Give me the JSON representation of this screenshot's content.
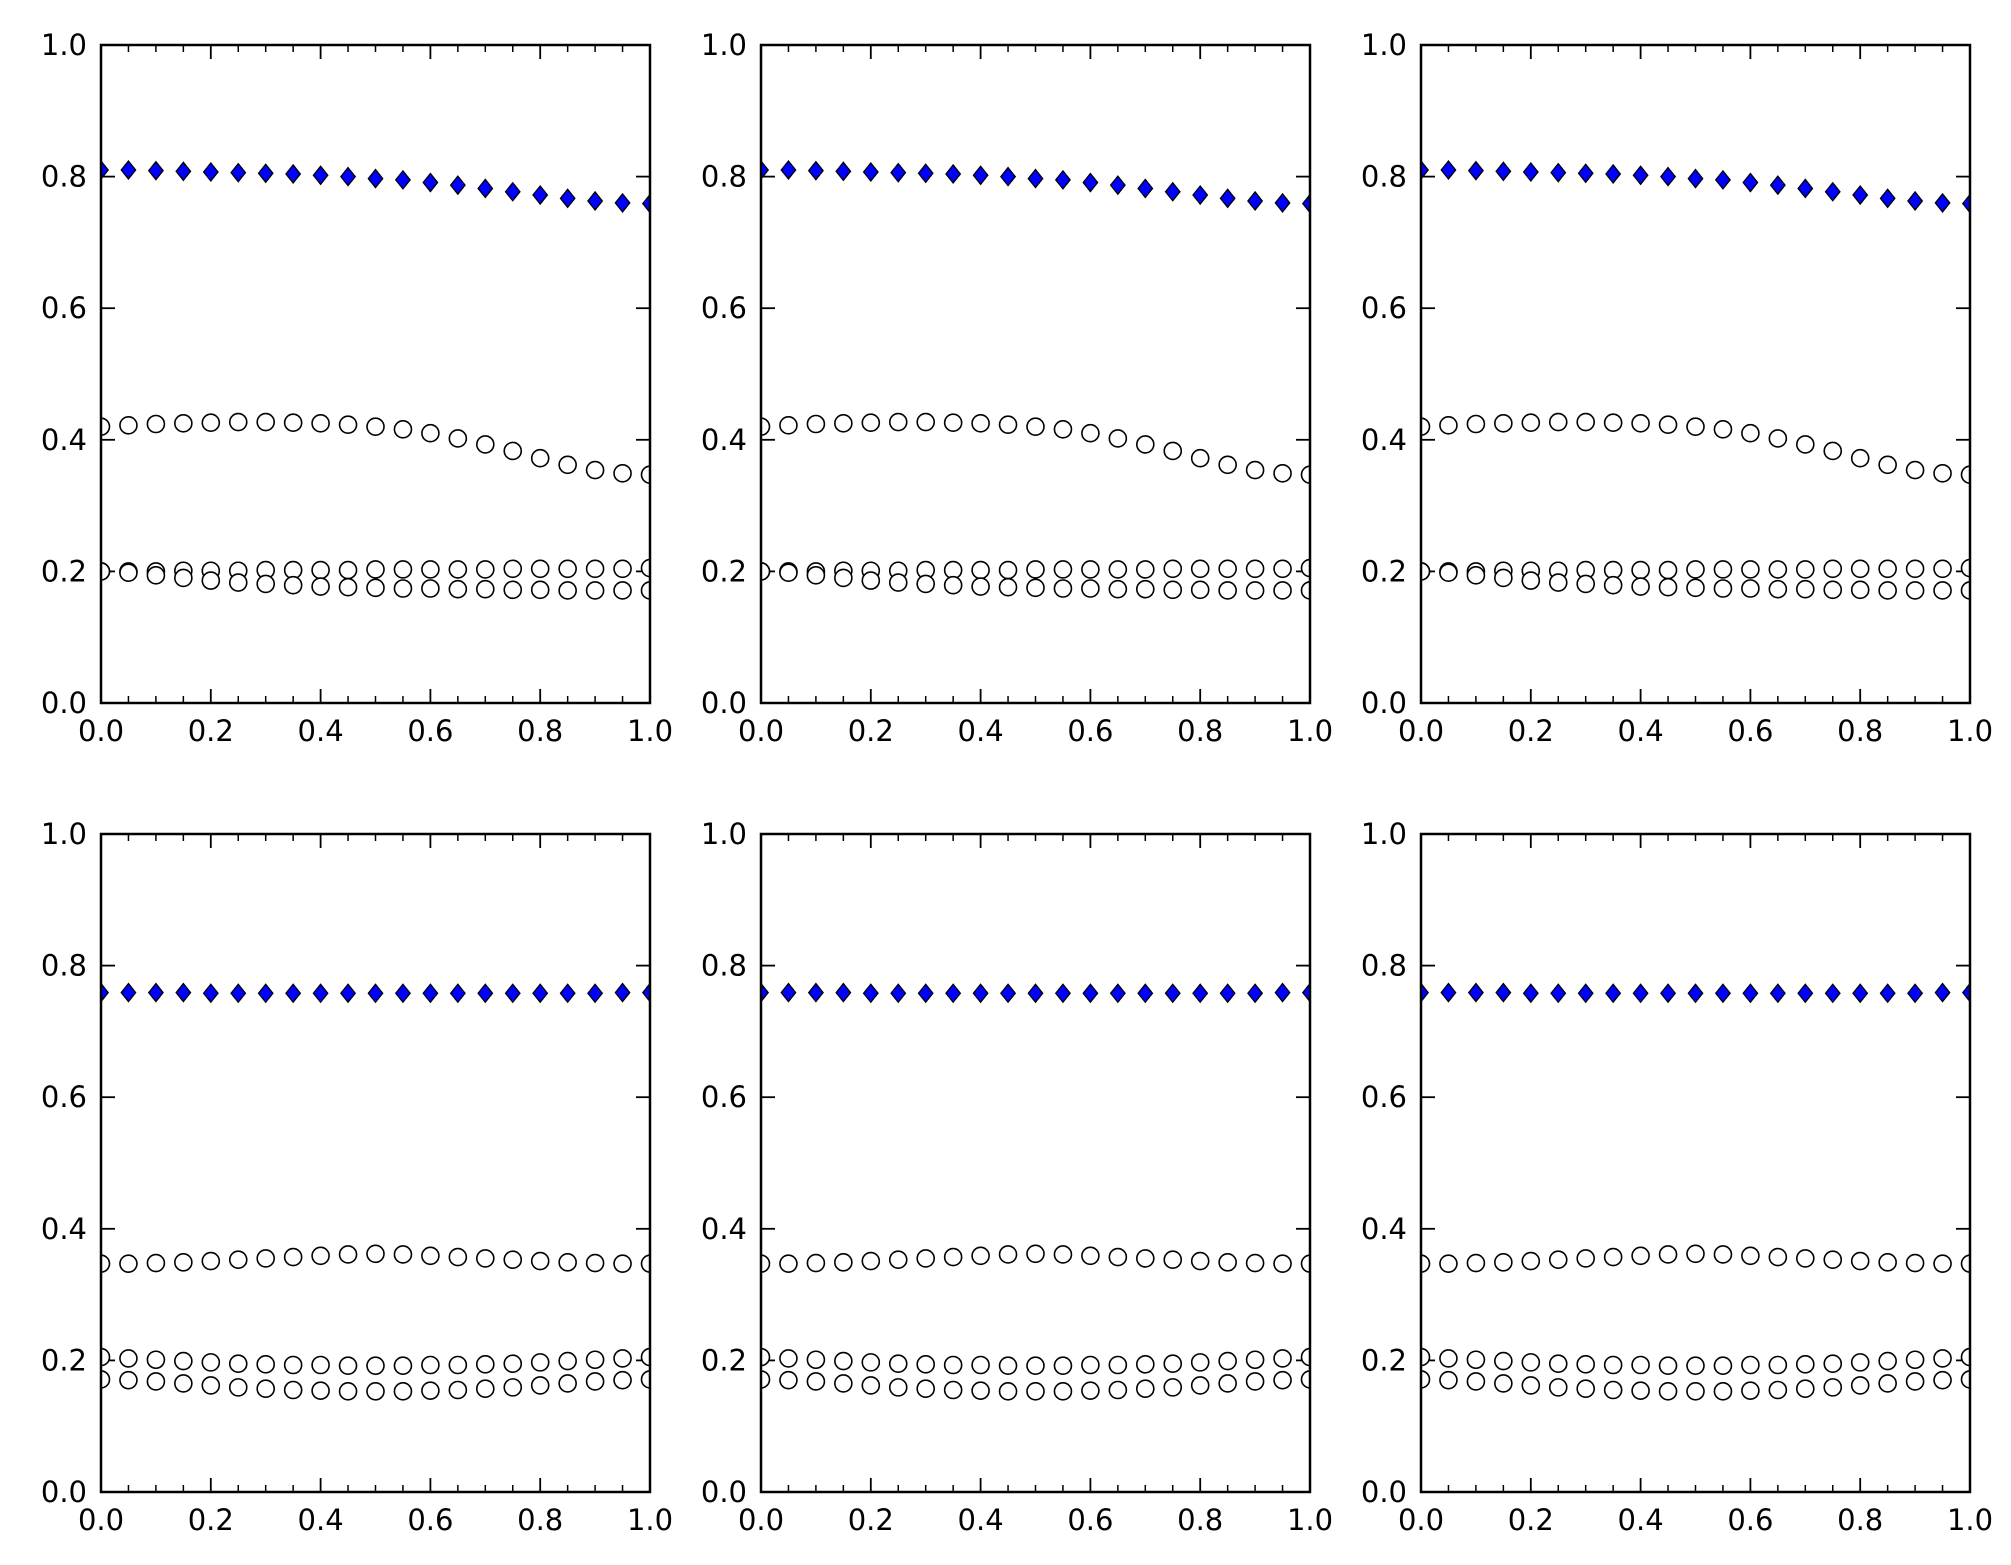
{
  "chart_data": [
    {
      "type": "scatter",
      "xlim": [
        0.0,
        1.0
      ],
      "ylim": [
        0.0,
        1.0
      ],
      "xticks": [
        "0.0",
        "0.2",
        "0.4",
        "0.6",
        "0.8",
        "1.0"
      ],
      "yticks": [
        "0.0",
        "0.2",
        "0.4",
        "0.6",
        "0.8",
        "1.0"
      ],
      "grid": false,
      "x": [
        0,
        0.05,
        0.1,
        0.15,
        0.2,
        0.25,
        0.3,
        0.35,
        0.4,
        0.45,
        0.5,
        0.55,
        0.6,
        0.65,
        0.7,
        0.75,
        0.8,
        0.85,
        0.9,
        0.95,
        1.0
      ],
      "series": [
        {
          "marker": "diamond",
          "color": "#0000ff",
          "values": [
            0.81,
            0.81,
            0.809,
            0.808,
            0.807,
            0.806,
            0.805,
            0.804,
            0.802,
            0.8,
            0.797,
            0.795,
            0.791,
            0.787,
            0.782,
            0.777,
            0.772,
            0.767,
            0.763,
            0.76,
            0.759
          ]
        },
        {
          "marker": "circle",
          "color": "#ffffff",
          "values": [
            0.42,
            0.422,
            0.424,
            0.425,
            0.426,
            0.427,
            0.427,
            0.426,
            0.425,
            0.423,
            0.42,
            0.416,
            0.41,
            0.402,
            0.393,
            0.383,
            0.372,
            0.362,
            0.354,
            0.349,
            0.347
          ]
        },
        {
          "marker": "circle",
          "color": "#ffffff",
          "values": [
            0.2,
            0.2,
            0.2,
            0.201,
            0.201,
            0.201,
            0.202,
            0.202,
            0.202,
            0.202,
            0.203,
            0.203,
            0.203,
            0.203,
            0.203,
            0.204,
            0.204,
            0.204,
            0.204,
            0.204,
            0.205
          ]
        },
        {
          "marker": "circle",
          "color": "#ffffff",
          "values": [
            0.2,
            0.198,
            0.194,
            0.19,
            0.186,
            0.183,
            0.181,
            0.179,
            0.177,
            0.176,
            0.175,
            0.174,
            0.174,
            0.173,
            0.173,
            0.172,
            0.172,
            0.171,
            0.171,
            0.171,
            0.171
          ]
        }
      ]
    },
    {
      "type": "scatter",
      "xlim": [
        0.0,
        1.0
      ],
      "ylim": [
        0.0,
        1.0
      ],
      "xticks": [
        "0.0",
        "0.2",
        "0.4",
        "0.6",
        "0.8",
        "1.0"
      ],
      "yticks": [
        "0.0",
        "0.2",
        "0.4",
        "0.6",
        "0.8",
        "1.0"
      ],
      "grid": false,
      "x": [
        0,
        0.05,
        0.1,
        0.15,
        0.2,
        0.25,
        0.3,
        0.35,
        0.4,
        0.45,
        0.5,
        0.55,
        0.6,
        0.65,
        0.7,
        0.75,
        0.8,
        0.85,
        0.9,
        0.95,
        1.0
      ],
      "series": [
        {
          "marker": "diamond",
          "color": "#0000ff",
          "values": [
            0.81,
            0.81,
            0.809,
            0.808,
            0.807,
            0.806,
            0.805,
            0.804,
            0.802,
            0.8,
            0.797,
            0.795,
            0.791,
            0.787,
            0.782,
            0.777,
            0.772,
            0.767,
            0.763,
            0.76,
            0.759
          ]
        },
        {
          "marker": "circle",
          "color": "#ffffff",
          "values": [
            0.42,
            0.422,
            0.424,
            0.425,
            0.426,
            0.427,
            0.427,
            0.426,
            0.425,
            0.423,
            0.42,
            0.416,
            0.41,
            0.402,
            0.393,
            0.383,
            0.372,
            0.362,
            0.354,
            0.349,
            0.347
          ]
        },
        {
          "marker": "circle",
          "color": "#ffffff",
          "values": [
            0.2,
            0.2,
            0.2,
            0.201,
            0.201,
            0.201,
            0.202,
            0.202,
            0.202,
            0.202,
            0.203,
            0.203,
            0.203,
            0.203,
            0.203,
            0.204,
            0.204,
            0.204,
            0.204,
            0.204,
            0.205
          ]
        },
        {
          "marker": "circle",
          "color": "#ffffff",
          "values": [
            0.2,
            0.198,
            0.194,
            0.19,
            0.186,
            0.183,
            0.181,
            0.179,
            0.177,
            0.176,
            0.175,
            0.174,
            0.174,
            0.173,
            0.173,
            0.172,
            0.172,
            0.171,
            0.171,
            0.171,
            0.171
          ]
        }
      ]
    },
    {
      "type": "scatter",
      "xlim": [
        0.0,
        1.0
      ],
      "ylim": [
        0.0,
        1.0
      ],
      "xticks": [
        "0.0",
        "0.2",
        "0.4",
        "0.6",
        "0.8",
        "1.0"
      ],
      "yticks": [
        "0.0",
        "0.2",
        "0.4",
        "0.6",
        "0.8",
        "1.0"
      ],
      "grid": false,
      "x": [
        0,
        0.05,
        0.1,
        0.15,
        0.2,
        0.25,
        0.3,
        0.35,
        0.4,
        0.45,
        0.5,
        0.55,
        0.6,
        0.65,
        0.7,
        0.75,
        0.8,
        0.85,
        0.9,
        0.95,
        1.0
      ],
      "series": [
        {
          "marker": "diamond",
          "color": "#0000ff",
          "values": [
            0.81,
            0.81,
            0.809,
            0.808,
            0.807,
            0.806,
            0.805,
            0.804,
            0.802,
            0.8,
            0.797,
            0.795,
            0.791,
            0.787,
            0.782,
            0.777,
            0.772,
            0.767,
            0.763,
            0.76,
            0.759
          ]
        },
        {
          "marker": "circle",
          "color": "#ffffff",
          "values": [
            0.42,
            0.422,
            0.424,
            0.425,
            0.426,
            0.427,
            0.427,
            0.426,
            0.425,
            0.423,
            0.42,
            0.416,
            0.41,
            0.402,
            0.393,
            0.383,
            0.372,
            0.362,
            0.354,
            0.349,
            0.347
          ]
        },
        {
          "marker": "circle",
          "color": "#ffffff",
          "values": [
            0.2,
            0.2,
            0.2,
            0.201,
            0.201,
            0.201,
            0.202,
            0.202,
            0.202,
            0.202,
            0.203,
            0.203,
            0.203,
            0.203,
            0.203,
            0.204,
            0.204,
            0.204,
            0.204,
            0.204,
            0.205
          ]
        },
        {
          "marker": "circle",
          "color": "#ffffff",
          "values": [
            0.2,
            0.198,
            0.194,
            0.19,
            0.186,
            0.183,
            0.181,
            0.179,
            0.177,
            0.176,
            0.175,
            0.174,
            0.174,
            0.173,
            0.173,
            0.172,
            0.172,
            0.171,
            0.171,
            0.171,
            0.171
          ]
        }
      ]
    },
    {
      "type": "scatter",
      "xlim": [
        0.0,
        1.0
      ],
      "ylim": [
        0.0,
        1.0
      ],
      "xticks": [
        "0.0",
        "0.2",
        "0.4",
        "0.6",
        "0.8",
        "1.0"
      ],
      "yticks": [
        "0.0",
        "0.2",
        "0.4",
        "0.6",
        "0.8",
        "1.0"
      ],
      "grid": false,
      "x": [
        0,
        0.05,
        0.1,
        0.15,
        0.2,
        0.25,
        0.3,
        0.35,
        0.4,
        0.45,
        0.5,
        0.55,
        0.6,
        0.65,
        0.7,
        0.75,
        0.8,
        0.85,
        0.9,
        0.95,
        1.0
      ],
      "series": [
        {
          "marker": "diamond",
          "color": "#0000ff",
          "values": [
            0.759,
            0.759,
            0.759,
            0.759,
            0.758,
            0.758,
            0.758,
            0.758,
            0.758,
            0.758,
            0.758,
            0.758,
            0.758,
            0.758,
            0.758,
            0.758,
            0.758,
            0.758,
            0.758,
            0.759,
            0.759
          ]
        },
        {
          "marker": "circle",
          "color": "#ffffff",
          "values": [
            0.347,
            0.347,
            0.348,
            0.349,
            0.351,
            0.353,
            0.355,
            0.357,
            0.359,
            0.361,
            0.362,
            0.361,
            0.359,
            0.357,
            0.355,
            0.353,
            0.351,
            0.349,
            0.348,
            0.347,
            0.347
          ]
        },
        {
          "marker": "circle",
          "color": "#ffffff",
          "values": [
            0.205,
            0.203,
            0.201,
            0.199,
            0.197,
            0.195,
            0.194,
            0.193,
            0.193,
            0.192,
            0.192,
            0.192,
            0.193,
            0.193,
            0.194,
            0.195,
            0.197,
            0.199,
            0.201,
            0.203,
            0.205
          ]
        },
        {
          "marker": "circle",
          "color": "#ffffff",
          "values": [
            0.171,
            0.17,
            0.168,
            0.165,
            0.162,
            0.159,
            0.157,
            0.155,
            0.154,
            0.153,
            0.153,
            0.153,
            0.154,
            0.155,
            0.157,
            0.159,
            0.162,
            0.165,
            0.168,
            0.17,
            0.171
          ]
        }
      ]
    },
    {
      "type": "scatter",
      "xlim": [
        0.0,
        1.0
      ],
      "ylim": [
        0.0,
        1.0
      ],
      "xticks": [
        "0.0",
        "0.2",
        "0.4",
        "0.6",
        "0.8",
        "1.0"
      ],
      "yticks": [
        "0.0",
        "0.2",
        "0.4",
        "0.6",
        "0.8",
        "1.0"
      ],
      "grid": false,
      "x": [
        0,
        0.05,
        0.1,
        0.15,
        0.2,
        0.25,
        0.3,
        0.35,
        0.4,
        0.45,
        0.5,
        0.55,
        0.6,
        0.65,
        0.7,
        0.75,
        0.8,
        0.85,
        0.9,
        0.95,
        1.0
      ],
      "series": [
        {
          "marker": "diamond",
          "color": "#0000ff",
          "values": [
            0.759,
            0.759,
            0.759,
            0.759,
            0.758,
            0.758,
            0.758,
            0.758,
            0.758,
            0.758,
            0.758,
            0.758,
            0.758,
            0.758,
            0.758,
            0.758,
            0.758,
            0.758,
            0.758,
            0.759,
            0.759
          ]
        },
        {
          "marker": "circle",
          "color": "#ffffff",
          "values": [
            0.347,
            0.347,
            0.348,
            0.349,
            0.351,
            0.353,
            0.355,
            0.357,
            0.359,
            0.361,
            0.362,
            0.361,
            0.359,
            0.357,
            0.355,
            0.353,
            0.351,
            0.349,
            0.348,
            0.347,
            0.347
          ]
        },
        {
          "marker": "circle",
          "color": "#ffffff",
          "values": [
            0.205,
            0.203,
            0.201,
            0.199,
            0.197,
            0.195,
            0.194,
            0.193,
            0.193,
            0.192,
            0.192,
            0.192,
            0.193,
            0.193,
            0.194,
            0.195,
            0.197,
            0.199,
            0.201,
            0.203,
            0.205
          ]
        },
        {
          "marker": "circle",
          "color": "#ffffff",
          "values": [
            0.171,
            0.17,
            0.168,
            0.165,
            0.162,
            0.159,
            0.157,
            0.155,
            0.154,
            0.153,
            0.153,
            0.153,
            0.154,
            0.155,
            0.157,
            0.159,
            0.162,
            0.165,
            0.168,
            0.17,
            0.171
          ]
        }
      ]
    },
    {
      "type": "scatter",
      "xlim": [
        0.0,
        1.0
      ],
      "ylim": [
        0.0,
        1.0
      ],
      "xticks": [
        "0.0",
        "0.2",
        "0.4",
        "0.6",
        "0.8",
        "1.0"
      ],
      "yticks": [
        "0.0",
        "0.2",
        "0.4",
        "0.6",
        "0.8",
        "1.0"
      ],
      "grid": false,
      "x": [
        0,
        0.05,
        0.1,
        0.15,
        0.2,
        0.25,
        0.3,
        0.35,
        0.4,
        0.45,
        0.5,
        0.55,
        0.6,
        0.65,
        0.7,
        0.75,
        0.8,
        0.85,
        0.9,
        0.95,
        1.0
      ],
      "series": [
        {
          "marker": "diamond",
          "color": "#0000ff",
          "values": [
            0.759,
            0.759,
            0.759,
            0.759,
            0.758,
            0.758,
            0.758,
            0.758,
            0.758,
            0.758,
            0.758,
            0.758,
            0.758,
            0.758,
            0.758,
            0.758,
            0.758,
            0.758,
            0.758,
            0.759,
            0.759
          ]
        },
        {
          "marker": "circle",
          "color": "#ffffff",
          "values": [
            0.347,
            0.347,
            0.348,
            0.349,
            0.351,
            0.353,
            0.355,
            0.357,
            0.359,
            0.361,
            0.362,
            0.361,
            0.359,
            0.357,
            0.355,
            0.353,
            0.351,
            0.349,
            0.348,
            0.347,
            0.347
          ]
        },
        {
          "marker": "circle",
          "color": "#ffffff",
          "values": [
            0.205,
            0.203,
            0.201,
            0.199,
            0.197,
            0.195,
            0.194,
            0.193,
            0.193,
            0.192,
            0.192,
            0.192,
            0.193,
            0.193,
            0.194,
            0.195,
            0.197,
            0.199,
            0.201,
            0.203,
            0.205
          ]
        },
        {
          "marker": "circle",
          "color": "#ffffff",
          "values": [
            0.171,
            0.17,
            0.168,
            0.165,
            0.162,
            0.159,
            0.157,
            0.155,
            0.154,
            0.153,
            0.153,
            0.153,
            0.154,
            0.155,
            0.157,
            0.159,
            0.162,
            0.165,
            0.168,
            0.17,
            0.171
          ]
        }
      ]
    }
  ]
}
